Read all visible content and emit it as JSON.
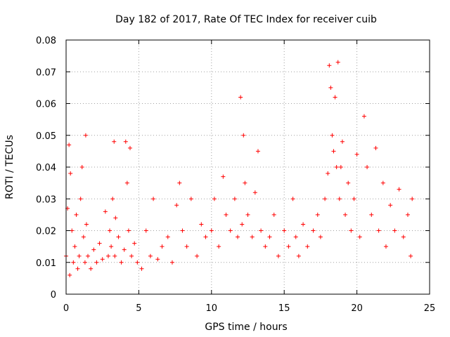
{
  "chart_data": {
    "type": "scatter",
    "title": "Day 182 of 2017, Rate Of TEC Index for receiver cuib",
    "xlabel": "GPS time / hours",
    "ylabel": "ROTI / TECUs",
    "xlim": [
      0,
      25
    ],
    "ylim": [
      0,
      0.08
    ],
    "x_ticks": [
      0,
      5,
      10,
      15,
      20,
      25
    ],
    "x_tick_labels": [
      "0",
      "5",
      "10",
      "15",
      "20",
      "25"
    ],
    "y_ticks": [
      0,
      0.01,
      0.02,
      0.03,
      0.04,
      0.05,
      0.06,
      0.07,
      0.08
    ],
    "y_tick_labels": [
      "0",
      "0.01",
      "0.02",
      "0.03",
      "0.04",
      "0.05",
      "0.06",
      "0.07",
      "0.08"
    ],
    "grid": true,
    "marker": "plus",
    "color": "#ff0000",
    "series": [
      {
        "values_x": [
          0.0,
          0.1,
          0.2,
          0.25,
          0.3,
          0.4,
          0.5,
          0.6,
          0.7,
          0.8,
          0.9,
          1.0,
          1.1,
          1.2,
          1.3,
          1.35,
          1.4,
          1.5,
          1.7,
          1.9,
          2.1,
          2.3,
          2.5,
          2.7,
          2.9,
          3.0,
          3.1,
          3.2,
          3.3,
          3.35,
          3.4,
          3.6,
          3.8,
          4.0,
          4.1,
          4.2,
          4.3,
          4.4,
          4.5,
          4.7,
          4.9,
          5.2,
          5.5,
          5.8,
          6.0,
          6.3,
          6.6,
          7.0,
          7.3,
          7.6,
          7.8,
          8.0,
          8.3,
          8.6,
          9.0,
          9.3,
          9.6,
          10.0,
          10.2,
          10.5,
          10.8,
          11.0,
          11.3,
          11.6,
          11.8,
          12.0,
          12.1,
          12.2,
          12.3,
          12.5,
          12.8,
          13.0,
          13.2,
          13.4,
          13.7,
          14.0,
          14.3,
          14.6,
          15.0,
          15.3,
          15.6,
          15.8,
          16.0,
          16.3,
          16.6,
          17.0,
          17.3,
          17.5,
          17.8,
          18.0,
          18.1,
          18.2,
          18.3,
          18.4,
          18.5,
          18.6,
          18.7,
          18.8,
          18.9,
          19.0,
          19.2,
          19.4,
          19.6,
          19.8,
          20.0,
          20.2,
          20.5,
          20.7,
          21.0,
          21.3,
          21.5,
          21.8,
          22.0,
          22.3,
          22.6,
          22.9,
          23.2,
          23.5,
          23.7,
          23.8
        ],
        "values_y": [
          0.012,
          0.027,
          0.047,
          0.006,
          0.038,
          0.02,
          0.01,
          0.015,
          0.025,
          0.008,
          0.012,
          0.03,
          0.04,
          0.018,
          0.01,
          0.05,
          0.022,
          0.012,
          0.008,
          0.014,
          0.01,
          0.016,
          0.011,
          0.026,
          0.012,
          0.02,
          0.015,
          0.03,
          0.048,
          0.012,
          0.024,
          0.018,
          0.01,
          0.014,
          0.048,
          0.035,
          0.02,
          0.046,
          0.012,
          0.016,
          0.01,
          0.008,
          0.02,
          0.012,
          0.03,
          0.011,
          0.015,
          0.018,
          0.01,
          0.028,
          0.035,
          0.02,
          0.015,
          0.03,
          0.012,
          0.022,
          0.018,
          0.02,
          0.03,
          0.015,
          0.037,
          0.025,
          0.02,
          0.03,
          0.018,
          0.062,
          0.022,
          0.05,
          0.035,
          0.025,
          0.018,
          0.032,
          0.045,
          0.02,
          0.015,
          0.018,
          0.025,
          0.012,
          0.02,
          0.015,
          0.03,
          0.018,
          0.012,
          0.022,
          0.015,
          0.02,
          0.025,
          0.018,
          0.03,
          0.038,
          0.072,
          0.065,
          0.05,
          0.045,
          0.062,
          0.04,
          0.073,
          0.03,
          0.04,
          0.048,
          0.025,
          0.035,
          0.02,
          0.03,
          0.044,
          0.018,
          0.056,
          0.04,
          0.025,
          0.046,
          0.02,
          0.035,
          0.015,
          0.028,
          0.02,
          0.033,
          0.018,
          0.025,
          0.012,
          0.03
        ]
      }
    ]
  }
}
